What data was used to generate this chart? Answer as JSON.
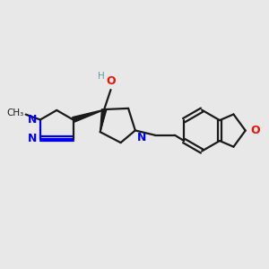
{
  "background_color": "#e8e8e8",
  "bond_color": "#1a1a1a",
  "N_color": "#0000ee",
  "O_color": "#ee1100",
  "H_color": "#5f9ea0",
  "figsize": [
    3.0,
    3.0
  ],
  "dpi": 100,
  "xlim": [
    0,
    10
  ],
  "ylim": [
    0,
    10
  ]
}
